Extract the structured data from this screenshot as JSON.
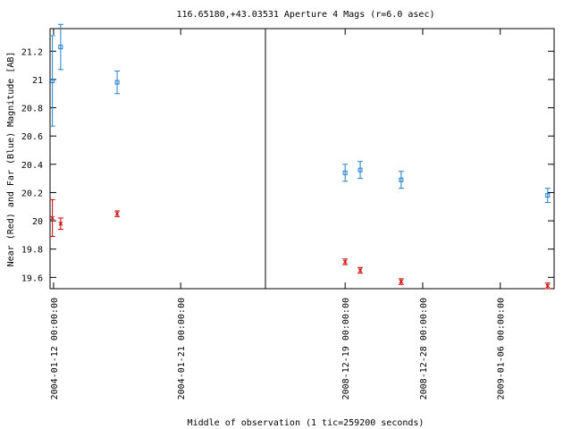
{
  "chart_data": {
    "type": "scatter",
    "title": "116.65180,+43.03531   Aperture 4 Mags (r=6.0 asec)",
    "xlabel": "Middle of observation (1 tic=259200 seconds)",
    "ylabel": "Near (Red) and Far (Blue) Magnitude [AB]",
    "ylim": [
      21.36,
      19.52
    ],
    "y_inverted": true,
    "yticks": [
      "19.6",
      "19.8",
      "20",
      "20.2",
      "20.4",
      "20.6",
      "20.8",
      "21",
      "21.2"
    ],
    "grid": false,
    "broken_x_axis": true,
    "panels": [
      {
        "name": "left",
        "xlim": [
          "2004-01-11 18:00",
          "2004-01-27 00:00"
        ],
        "xticks": [
          {
            "t": "2004-01-12 00:00",
            "label": "2004-01-12 00:00:00"
          },
          {
            "t": "2004-01-21 00:00",
            "label": "2004-01-21 00:00:00"
          }
        ]
      },
      {
        "name": "right",
        "xlim": [
          "2008-12-09 18:00",
          "2009-01-12 06:00"
        ],
        "xticks": [
          {
            "t": "2008-12-19 00:00",
            "label": "2008-12-19 00:00:00"
          },
          {
            "t": "2008-12-28 00:00",
            "label": "2008-12-28 00:00:00"
          },
          {
            "t": "2009-01-06 00:00",
            "label": "2009-01-06 00:00:00"
          }
        ]
      }
    ],
    "series": [
      {
        "color": "#cc0000",
        "marker": "x",
        "points": [
          {
            "panel": 0,
            "t": "2004-01-11 22:00",
            "y": 20.02,
            "err": 0.13
          },
          {
            "panel": 0,
            "t": "2004-01-12 12:00",
            "y": 19.98,
            "err": 0.04
          },
          {
            "panel": 0,
            "t": "2004-01-16 12:00",
            "y": 20.05,
            "err": 0.02
          },
          {
            "panel": 1,
            "t": "2008-12-19 00:00",
            "y": 19.71,
            "err": 0.02
          },
          {
            "panel": 1,
            "t": "2008-12-20 18:00",
            "y": 19.65,
            "err": 0.02
          },
          {
            "panel": 1,
            "t": "2008-12-25 12:00",
            "y": 19.57,
            "err": 0.02
          },
          {
            "panel": 1,
            "t": "2009-01-11 12:00",
            "y": 19.54,
            "err": 0.02
          }
        ]
      },
      {
        "color": "#1e7fcf",
        "marker": "square",
        "points": [
          {
            "panel": 0,
            "t": "2004-01-11 22:00",
            "y": 20.99,
            "err": 0.32
          },
          {
            "panel": 0,
            "t": "2004-01-12 12:00",
            "y": 21.23,
            "err": 0.16
          },
          {
            "panel": 0,
            "t": "2004-01-16 12:00",
            "y": 20.98,
            "err": 0.08
          },
          {
            "panel": 1,
            "t": "2008-12-19 00:00",
            "y": 20.34,
            "err": 0.06
          },
          {
            "panel": 1,
            "t": "2008-12-20 18:00",
            "y": 20.36,
            "err": 0.06
          },
          {
            "panel": 1,
            "t": "2008-12-25 12:00",
            "y": 20.29,
            "err": 0.06
          },
          {
            "panel": 1,
            "t": "2009-01-11 12:00",
            "y": 20.18,
            "err": 0.05
          }
        ]
      }
    ]
  }
}
